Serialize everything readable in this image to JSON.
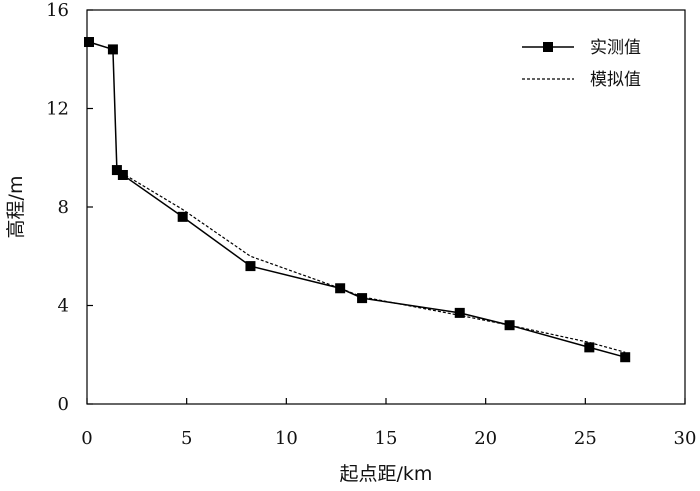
{
  "chart_data": {
    "type": "line",
    "xlabel": "起点距/km",
    "ylabel": "高程/m",
    "xlim": [
      0,
      30
    ],
    "ylim": [
      0,
      16
    ],
    "xticks": [
      0,
      5,
      10,
      15,
      20,
      25,
      30
    ],
    "yticks": [
      0,
      4,
      8,
      12,
      16
    ],
    "grid": false,
    "legend_position": "top-right",
    "series": [
      {
        "name": "实测值",
        "style": "solid-square-markers",
        "color": "#000000",
        "x": [
          0.1,
          1.3,
          1.5,
          1.8,
          4.8,
          8.2,
          12.7,
          13.8,
          18.7,
          21.2,
          25.2,
          27.0
        ],
        "y": [
          14.7,
          14.4,
          9.5,
          9.3,
          7.6,
          5.6,
          4.7,
          4.3,
          3.7,
          3.2,
          2.3,
          1.9
        ]
      },
      {
        "name": "模拟值",
        "style": "dashed",
        "color": "#000000",
        "x": [
          1.5,
          4.8,
          8.2,
          12.7,
          13.8,
          18.7,
          21.2,
          25.2,
          27.0
        ],
        "y": [
          9.5,
          7.9,
          6.0,
          4.7,
          4.35,
          3.6,
          3.2,
          2.5,
          2.1
        ]
      }
    ]
  }
}
